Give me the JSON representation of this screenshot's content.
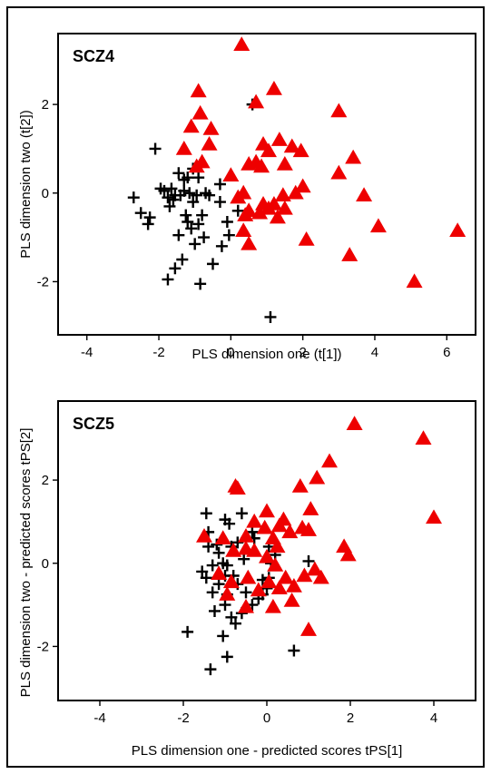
{
  "chart_data": [
    {
      "type": "scatter",
      "title": "SCZ4",
      "xlabel": "PLS dimension one (t[1])",
      "ylabel": "PLS dimension two (t[2])",
      "xlim": [
        -4.8,
        6.8
      ],
      "ylim": [
        -3.2,
        3.6
      ],
      "xticks": [
        "-4",
        "-2",
        "0",
        "2",
        "4",
        "6"
      ],
      "yticks": [
        "-2",
        "0",
        "2"
      ],
      "xtick_values": [
        -4,
        -2,
        0,
        2,
        4,
        6
      ],
      "ytick_values": [
        -2,
        0,
        2
      ],
      "grid": false,
      "series": [
        {
          "marker": "plus",
          "color": "#000000",
          "points": [
            [
              -2.7,
              -0.1
            ],
            [
              -2.5,
              -0.45
            ],
            [
              -2.3,
              -0.7
            ],
            [
              -2.25,
              -0.55
            ],
            [
              -2.1,
              1.0
            ],
            [
              -1.95,
              0.1
            ],
            [
              -1.85,
              0.05
            ],
            [
              -1.75,
              -0.1
            ],
            [
              -1.7,
              -0.3
            ],
            [
              -1.65,
              0.1
            ],
            [
              -1.6,
              -0.15
            ],
            [
              -1.55,
              -0.05
            ],
            [
              -1.55,
              -1.7
            ],
            [
              -1.45,
              0.45
            ],
            [
              -1.45,
              -0.95
            ],
            [
              -1.4,
              -0.05
            ],
            [
              -1.35,
              -1.5
            ],
            [
              -1.3,
              0.3
            ],
            [
              -1.3,
              0.05
            ],
            [
              -1.25,
              -0.5
            ],
            [
              -1.2,
              0.35
            ],
            [
              -1.2,
              -0.65
            ],
            [
              -1.15,
              0.0
            ],
            [
              -1.1,
              -0.8
            ],
            [
              -1.05,
              0.55
            ],
            [
              -1.05,
              -0.2
            ],
            [
              -1.0,
              -1.15
            ],
            [
              -0.95,
              -0.05
            ],
            [
              -0.9,
              0.35
            ],
            [
              -0.9,
              -0.7
            ],
            [
              -0.85,
              -2.05
            ],
            [
              -0.8,
              -0.5
            ],
            [
              -0.75,
              -1.0
            ],
            [
              -0.7,
              0.0
            ],
            [
              -0.6,
              -0.05
            ],
            [
              -0.5,
              -1.6
            ],
            [
              -0.3,
              0.2
            ],
            [
              -0.3,
              -0.2
            ],
            [
              -0.25,
              -1.2
            ],
            [
              -0.1,
              -0.65
            ],
            [
              -0.05,
              -0.95
            ],
            [
              0.2,
              -0.4
            ],
            [
              -1.75,
              -1.95
            ],
            [
              0.6,
              2.0
            ],
            [
              1.1,
              -2.8
            ]
          ]
        },
        {
          "marker": "triangle",
          "color": "#ee0000",
          "points": [
            [
              0.3,
              3.35
            ],
            [
              -0.9,
              2.3
            ],
            [
              -0.85,
              1.8
            ],
            [
              -0.55,
              1.45
            ],
            [
              -0.6,
              1.1
            ],
            [
              -1.1,
              1.5
            ],
            [
              -1.3,
              1.0
            ],
            [
              -0.8,
              0.7
            ],
            [
              -0.95,
              0.6
            ],
            [
              0.0,
              0.4
            ],
            [
              0.35,
              0.0
            ],
            [
              0.5,
              0.65
            ],
            [
              0.7,
              0.7
            ],
            [
              0.7,
              2.05
            ],
            [
              0.85,
              0.6
            ],
            [
              0.9,
              1.1
            ],
            [
              1.05,
              0.95
            ],
            [
              1.2,
              2.35
            ],
            [
              1.35,
              1.2
            ],
            [
              1.5,
              0.65
            ],
            [
              1.7,
              1.05
            ],
            [
              1.8,
              0.0
            ],
            [
              1.95,
              0.95
            ],
            [
              2.0,
              0.15
            ],
            [
              0.5,
              -0.4
            ],
            [
              0.8,
              -0.45
            ],
            [
              0.9,
              -0.25
            ],
            [
              1.05,
              -0.35
            ],
            [
              1.2,
              -0.25
            ],
            [
              1.3,
              -0.55
            ],
            [
              1.5,
              -0.35
            ],
            [
              0.35,
              -0.85
            ],
            [
              0.4,
              -0.5
            ],
            [
              0.5,
              -1.15
            ],
            [
              1.45,
              -0.05
            ],
            [
              2.1,
              -1.05
            ],
            [
              3.0,
              1.85
            ],
            [
              3.0,
              0.45
            ],
            [
              3.3,
              -1.4
            ],
            [
              3.4,
              0.8
            ],
            [
              3.7,
              -0.05
            ],
            [
              4.1,
              -0.75
            ],
            [
              5.1,
              -2.0
            ],
            [
              6.3,
              -0.85
            ],
            [
              0.2,
              -0.1
            ]
          ]
        }
      ]
    },
    {
      "type": "scatter",
      "title": "SCZ5",
      "xlabel": "PLS dimension one - predicted scores tPS[1]",
      "ylabel": "PLS dimension two - predicted scores tPS[2]",
      "xlim": [
        -5.0,
        5.0
      ],
      "ylim": [
        -3.3,
        3.9
      ],
      "xticks": [
        "-4",
        "-2",
        "0",
        "2",
        "4"
      ],
      "yticks": [
        "-2",
        "0",
        "2"
      ],
      "xtick_values": [
        -4,
        -2,
        0,
        2,
        4
      ],
      "ytick_values": [
        -2,
        0,
        2
      ],
      "grid": false,
      "series": [
        {
          "marker": "plus",
          "color": "#000000",
          "points": [
            [
              -1.45,
              1.2
            ],
            [
              -1.0,
              1.05
            ],
            [
              -0.6,
              1.2
            ],
            [
              -1.4,
              0.75
            ],
            [
              -1.4,
              0.4
            ],
            [
              -1.2,
              0.45
            ],
            [
              -0.9,
              0.95
            ],
            [
              -0.85,
              0.4
            ],
            [
              -1.55,
              -0.2
            ],
            [
              -1.45,
              -0.35
            ],
            [
              -1.3,
              -0.7
            ],
            [
              -1.15,
              -0.5
            ],
            [
              -1.0,
              -0.3
            ],
            [
              -0.95,
              -0.05
            ],
            [
              -0.8,
              -0.3
            ],
            [
              -0.7,
              -0.5
            ],
            [
              -1.25,
              -1.15
            ],
            [
              -1.0,
              -1.0
            ],
            [
              -0.85,
              -1.3
            ],
            [
              -0.75,
              -1.45
            ],
            [
              -0.6,
              -1.2
            ],
            [
              -0.5,
              -0.7
            ],
            [
              -0.35,
              -1.0
            ],
            [
              -0.35,
              0.75
            ],
            [
              -0.2,
              -0.85
            ],
            [
              -0.1,
              -0.4
            ],
            [
              0.0,
              -0.6
            ],
            [
              0.05,
              0.4
            ],
            [
              0.05,
              -0.35
            ],
            [
              0.1,
              0.0
            ],
            [
              -1.9,
              -1.65
            ],
            [
              -1.05,
              -1.75
            ],
            [
              -0.95,
              -2.25
            ],
            [
              -1.35,
              -2.55
            ],
            [
              0.65,
              -2.1
            ],
            [
              1.0,
              0.05
            ],
            [
              0.2,
              0.2
            ],
            [
              -0.7,
              0.5
            ],
            [
              -0.3,
              0.6
            ],
            [
              -1.15,
              0.25
            ],
            [
              -1.3,
              -0.05
            ],
            [
              -1.05,
              0.0
            ],
            [
              -0.95,
              -0.75
            ],
            [
              -0.1,
              -0.75
            ],
            [
              -0.55,
              0.1
            ]
          ]
        },
        {
          "marker": "triangle",
          "color": "#ee0000",
          "points": [
            [
              2.1,
              3.35
            ],
            [
              3.75,
              3.0
            ],
            [
              4.0,
              1.1
            ],
            [
              1.5,
              2.45
            ],
            [
              1.2,
              2.05
            ],
            [
              0.8,
              1.85
            ],
            [
              1.05,
              1.3
            ],
            [
              1.85,
              0.4
            ],
            [
              1.95,
              0.2
            ],
            [
              -0.75,
              1.85
            ],
            [
              -0.7,
              1.8
            ],
            [
              0.0,
              1.25
            ],
            [
              0.4,
              1.05
            ],
            [
              -0.5,
              0.65
            ],
            [
              -0.3,
              1.0
            ],
            [
              -0.05,
              0.85
            ],
            [
              0.15,
              0.6
            ],
            [
              0.3,
              0.9
            ],
            [
              0.55,
              0.75
            ],
            [
              0.85,
              0.85
            ],
            [
              1.0,
              0.8
            ],
            [
              -1.5,
              0.65
            ],
            [
              -1.05,
              0.6
            ],
            [
              -0.8,
              0.3
            ],
            [
              -0.5,
              0.35
            ],
            [
              -0.3,
              0.3
            ],
            [
              0.0,
              0.15
            ],
            [
              0.2,
              -0.05
            ],
            [
              0.45,
              -0.35
            ],
            [
              0.65,
              -0.55
            ],
            [
              0.9,
              -0.3
            ],
            [
              1.15,
              -0.15
            ],
            [
              1.3,
              -0.35
            ],
            [
              -1.15,
              -0.25
            ],
            [
              -0.85,
              -0.45
            ],
            [
              -0.45,
              -0.35
            ],
            [
              -0.2,
              -0.65
            ],
            [
              0.05,
              -0.45
            ],
            [
              0.3,
              -0.6
            ],
            [
              0.6,
              -0.9
            ],
            [
              0.15,
              -1.05
            ],
            [
              -0.5,
              -1.05
            ],
            [
              -0.95,
              -0.75
            ],
            [
              1.0,
              -1.6
            ],
            [
              0.25,
              0.4
            ]
          ]
        }
      ]
    }
  ]
}
